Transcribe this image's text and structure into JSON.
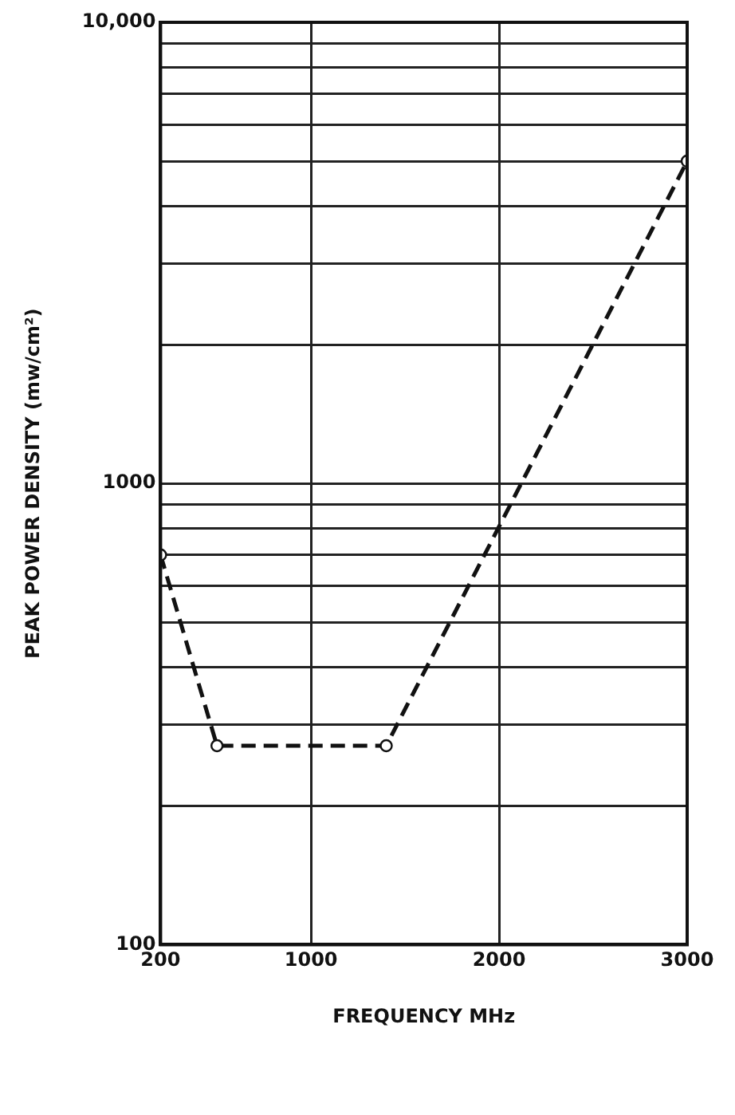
{
  "chart_data": {
    "type": "line",
    "xlabel": "FREQUENCY MHz",
    "ylabel": "PEAK POWER DENSITY (mw/cm²)",
    "x": [
      200,
      500,
      1400,
      3000
    ],
    "series": [
      {
        "color": "#111111",
        "values": [
          700,
          270,
          270,
          5000
        ]
      }
    ],
    "xlim": [
      200,
      3000
    ],
    "xticks": [
      200,
      1000,
      2000,
      3000
    ],
    "ylim": [
      100,
      10000
    ],
    "yticks": [
      100,
      {
        "value": 200,
        "label": null
      },
      {
        "value": 300,
        "label": null
      },
      {
        "value": 400,
        "label": null
      },
      {
        "value": 500,
        "label": null
      },
      {
        "value": 600,
        "label": null
      },
      {
        "value": 700,
        "label": null
      },
      {
        "value": 800,
        "label": null
      },
      {
        "value": 900,
        "label": null
      },
      1000,
      {
        "value": 2000,
        "label": null
      },
      {
        "value": 3000,
        "label": null
      },
      {
        "value": 4000,
        "label": null
      },
      {
        "value": 5000,
        "label": null
      },
      {
        "value": 6000,
        "label": null
      },
      {
        "value": 7000,
        "label": null
      },
      {
        "value": 8000,
        "label": null
      },
      {
        "value": 9000,
        "label": null
      },
      {
        "value": 10000,
        "label": "10,000"
      }
    ],
    "log": "y",
    "grid": true,
    "legend": false,
    "marker": "circle",
    "line_style": "dashed"
  }
}
